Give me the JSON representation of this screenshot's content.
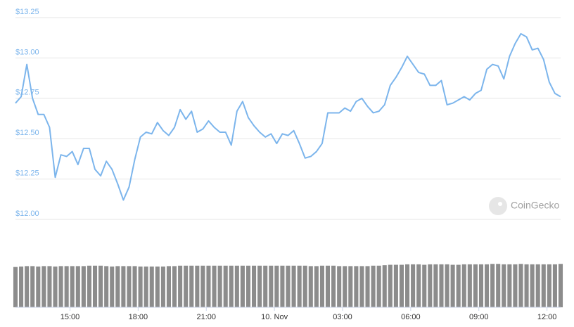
{
  "chart_data": {
    "type": "line",
    "watermark": "CoinGecko",
    "x": [
      12.6,
      12.85,
      13.1,
      13.35,
      13.6,
      13.85,
      14.1,
      14.35,
      14.6,
      14.85,
      15.1,
      15.35,
      15.6,
      15.85,
      16.1,
      16.35,
      16.6,
      16.85,
      17.1,
      17.35,
      17.6,
      17.85,
      18.1,
      18.35,
      18.6,
      18.85,
      19.1,
      19.35,
      19.6,
      19.85,
      20.1,
      20.35,
      20.6,
      20.85,
      21.1,
      21.35,
      21.6,
      21.85,
      22.1,
      22.35,
      22.6,
      22.85,
      23.1,
      23.35,
      23.6,
      23.85,
      24.1,
      24.35,
      24.6,
      24.85,
      25.1,
      25.35,
      25.6,
      25.85,
      26.1,
      26.35,
      26.6,
      26.85,
      27.1,
      27.35,
      27.6,
      27.85,
      28.1,
      28.35,
      28.6,
      28.85,
      29.1,
      29.35,
      29.6,
      29.85,
      30.1,
      30.35,
      30.6,
      30.85,
      31.1,
      31.35,
      31.6,
      31.85,
      32.1,
      32.35,
      32.6,
      32.85,
      33.1,
      33.35,
      33.6,
      33.85,
      34.1,
      34.35,
      34.6,
      34.85,
      35.1,
      35.35,
      35.6,
      35.85,
      36.1,
      36.35,
      36.6
    ],
    "series": [
      {
        "type": "line",
        "color": "#7cb5ec",
        "values": [
          12.72,
          12.76,
          12.96,
          12.75,
          12.65,
          12.65,
          12.57,
          12.26,
          12.4,
          12.39,
          12.42,
          12.34,
          12.44,
          12.44,
          12.31,
          12.27,
          12.36,
          12.31,
          12.22,
          12.12,
          12.2,
          12.37,
          12.51,
          12.54,
          12.53,
          12.6,
          12.55,
          12.52,
          12.57,
          12.68,
          12.62,
          12.67,
          12.54,
          12.56,
          12.61,
          12.57,
          12.54,
          12.54,
          12.46,
          12.67,
          12.73,
          12.63,
          12.58,
          12.54,
          12.51,
          12.53,
          12.47,
          12.53,
          12.52,
          12.55,
          12.47,
          12.38,
          12.39,
          12.42,
          12.47,
          12.66,
          12.66,
          12.66,
          12.69,
          12.67,
          12.73,
          12.75,
          12.7,
          12.66,
          12.67,
          12.71,
          12.83,
          12.88,
          12.94,
          13.01,
          12.96,
          12.91,
          12.9,
          12.83,
          12.83,
          12.86,
          12.71,
          12.72,
          12.74,
          12.76,
          12.74,
          12.78,
          12.8,
          12.93,
          12.96,
          12.95,
          12.87,
          13.01,
          13.09,
          13.15,
          13.13,
          13.05,
          13.06,
          12.99,
          12.85,
          12.78,
          12.76
        ]
      },
      {
        "type": "bar",
        "axis": "y2",
        "color": "#8c8c8c",
        "values": [
          91,
          92,
          93,
          93,
          92,
          93,
          93,
          92,
          93,
          93,
          93,
          93,
          93,
          94,
          94,
          94,
          93,
          92,
          93,
          93,
          93,
          93,
          92,
          92,
          92,
          92,
          92,
          93,
          93,
          94,
          94,
          94,
          94,
          94,
          94,
          94,
          94,
          94,
          94,
          94,
          94,
          94,
          94,
          94,
          94,
          94,
          94,
          94,
          94,
          94,
          94,
          94,
          93,
          93,
          94,
          94,
          94,
          93,
          93,
          93,
          93,
          93,
          93,
          94,
          94,
          95,
          96,
          96,
          96,
          97,
          97,
          97,
          96,
          97,
          97,
          97,
          97,
          96,
          96,
          97,
          97,
          97,
          97,
          97,
          98,
          98,
          97,
          97,
          97,
          98,
          97,
          97,
          97,
          97,
          97,
          97,
          98
        ]
      }
    ],
    "xlim": [
      12.6,
      36.6
    ],
    "xticks": [
      {
        "value": 15,
        "label": "15:00"
      },
      {
        "value": 18,
        "label": "18:00"
      },
      {
        "value": 21,
        "label": "21:00"
      },
      {
        "value": 24,
        "label": "10. Nov"
      },
      {
        "value": 27,
        "label": "03:00"
      },
      {
        "value": 30,
        "label": "06:00"
      },
      {
        "value": 33,
        "label": "09:00"
      },
      {
        "value": 36,
        "label": "12:00"
      }
    ],
    "ylim": [
      12,
      13.25
    ],
    "yticks": [
      {
        "value": 12,
        "label": "$12.00"
      },
      {
        "value": 12.25,
        "label": "$12.25"
      },
      {
        "value": 12.5,
        "label": "$12.50"
      },
      {
        "value": 12.75,
        "label": "$12.75"
      },
      {
        "value": 13,
        "label": "$13.00"
      },
      {
        "value": 13.25,
        "label": "$13.25"
      }
    ],
    "y2lim": [
      0,
      100
    ],
    "grid": true
  }
}
